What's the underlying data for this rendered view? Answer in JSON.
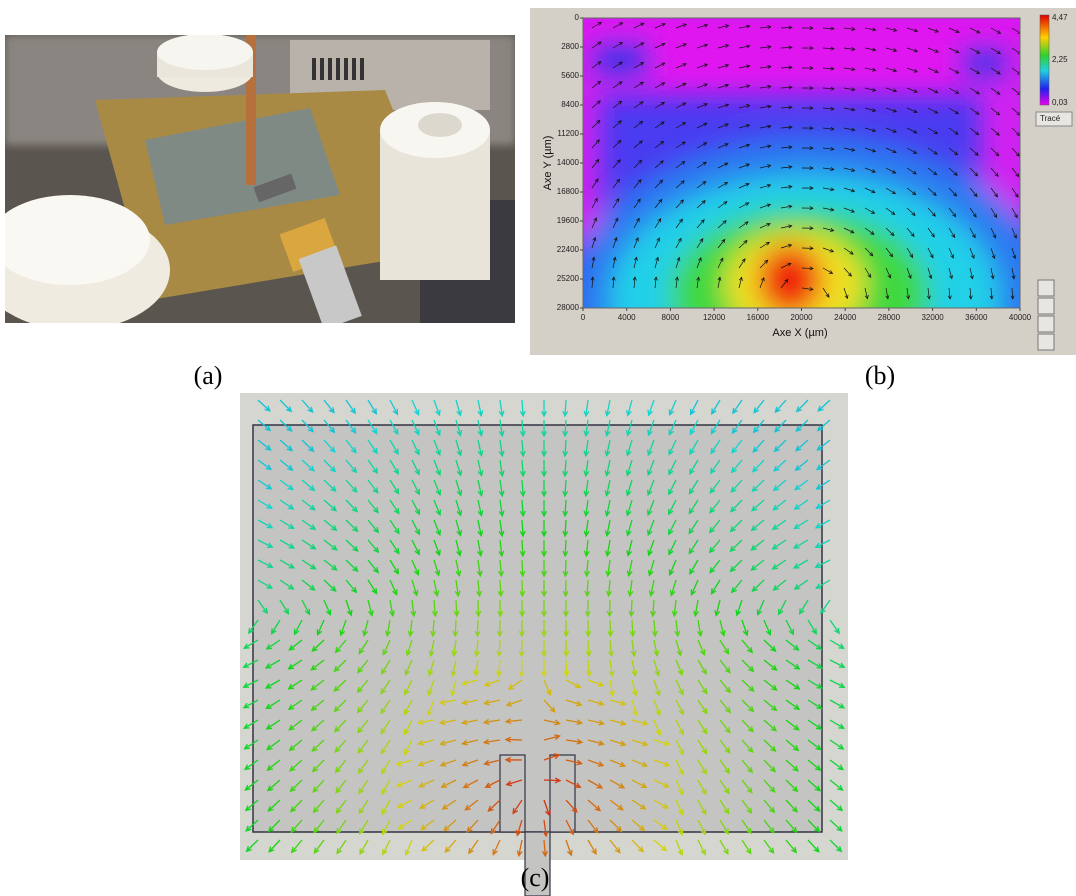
{
  "panels": {
    "a": {
      "label": "(a)"
    },
    "b": {
      "label": "(b)",
      "y_axis_title": "Axe Y (µm)",
      "x_axis_title": "Axe X (µm)",
      "xticks": [
        0,
        4000,
        8000,
        12000,
        16000,
        20000,
        24000,
        28000,
        32000,
        36000,
        40000
      ],
      "yticks": [
        0,
        2800,
        5600,
        8400,
        11200,
        14000,
        16800,
        19600,
        22400,
        25200,
        28000
      ],
      "colorbar_ticks": [
        "4,47",
        "2,25",
        "0,03"
      ],
      "button": "Tracé"
    },
    "c": {
      "label": "(c)"
    }
  }
}
